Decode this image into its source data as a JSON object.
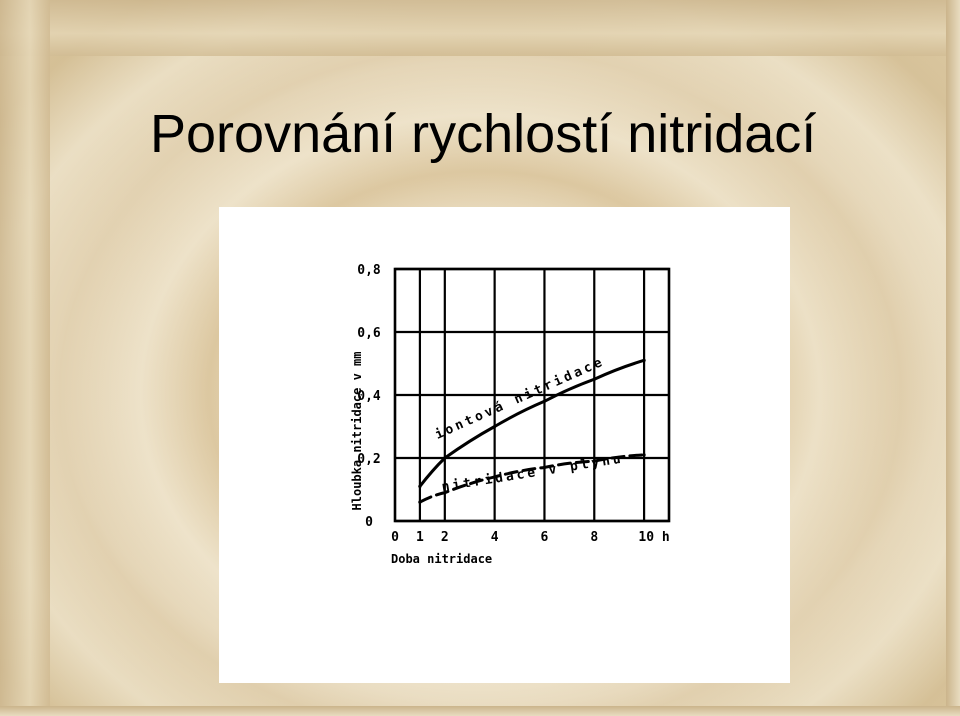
{
  "slide": {
    "title": "Porovnání rychlostí nitridací"
  },
  "chart_data": {
    "type": "line",
    "title": "",
    "xlabel": "Doba nitridace",
    "ylabel": "Hloubka nitridace v mm",
    "x_tick_labels": [
      "0",
      "1",
      "2",
      "4",
      "6",
      "8",
      "10 h"
    ],
    "x_tick_values": [
      0,
      1,
      2,
      4,
      6,
      8,
      10
    ],
    "y_tick_labels": [
      "0",
      "0,2",
      "0,4",
      "0,6",
      "0,8"
    ],
    "y_tick_values": [
      0,
      0.2,
      0.4,
      0.6,
      0.8
    ],
    "xlim": [
      0,
      11
    ],
    "ylim": [
      0,
      0.8
    ],
    "grid": true,
    "series": [
      {
        "name": "iontová nitridace",
        "style": "solid",
        "x": [
          1,
          2,
          4,
          6,
          8,
          10
        ],
        "y": [
          0.11,
          0.2,
          0.3,
          0.38,
          0.45,
          0.51
        ]
      },
      {
        "name": "nitridace v plynu",
        "style": "dashed",
        "x": [
          1,
          2,
          4,
          6,
          8,
          10
        ],
        "y": [
          0.06,
          0.09,
          0.14,
          0.17,
          0.19,
          0.21
        ]
      }
    ]
  }
}
